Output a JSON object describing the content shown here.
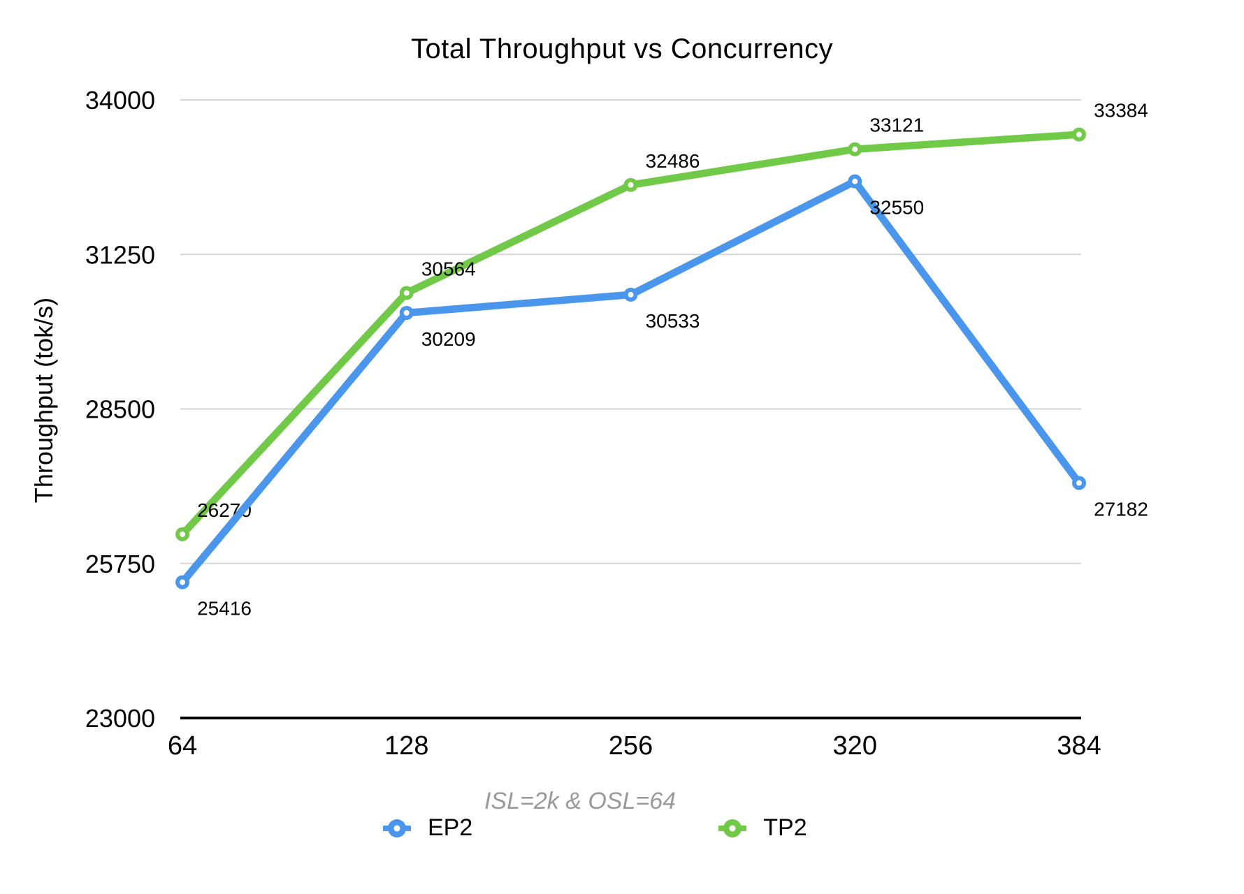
{
  "chart_data": {
    "type": "line",
    "title": "Total Throughput vs Concurrency",
    "subtitle": "ISL=2k & OSL=64",
    "ylabel": "Throughput (tok/s)",
    "xlabel": "",
    "categories": [
      "64",
      "128",
      "256",
      "320",
      "384"
    ],
    "ylim": [
      23000,
      34000
    ],
    "y_ticks": [
      23000,
      25750,
      28500,
      31250,
      34000
    ],
    "grid": true,
    "legend_position": "bottom",
    "series": [
      {
        "name": "EP2",
        "color": "#4A96EC",
        "values": [
          25416,
          30209,
          30533,
          32550,
          27182
        ],
        "data_label_position": "below"
      },
      {
        "name": "TP2",
        "color": "#71C948",
        "values": [
          26270,
          30564,
          32486,
          33121,
          33384
        ],
        "data_label_position": "above"
      }
    ],
    "colors": {
      "grid": "#D5D5D5",
      "axis": "#000000",
      "subtitle": "#999999",
      "text": "#000000",
      "marker_hole": "#FFFFFF"
    }
  }
}
